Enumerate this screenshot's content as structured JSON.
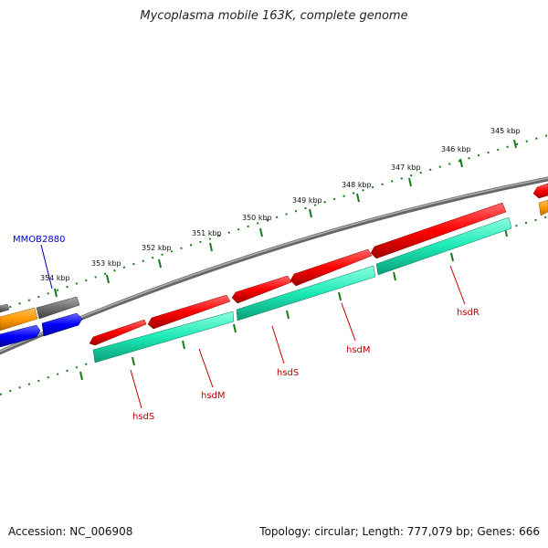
{
  "title": "Mycoplasma mobile 163K, complete genome",
  "accession": "Accession: NC_006908",
  "stats": "Topology: circular; Length: 777,079 bp; Genes: 666",
  "ticks": [
    {
      "label": "345 kbp"
    },
    {
      "label": "346 kbp"
    },
    {
      "label": "347 kbp"
    },
    {
      "label": "348 kbp"
    },
    {
      "label": "349 kbp"
    },
    {
      "label": "350 kbp"
    },
    {
      "label": "351 kbp"
    },
    {
      "label": "352 kbp"
    },
    {
      "label": "353 kbp"
    },
    {
      "label": "354 kbp"
    }
  ],
  "gene_labels": {
    "hsdS_1": "hsdS",
    "hsdM_1": "hsdM",
    "hsdS_2": "hsdS",
    "hsdM_2": "hsdM",
    "hsdR": "hsdR",
    "locus": "MMOB2880"
  },
  "colors": {
    "gene_red": "#ff0000",
    "cds_teal": "#1de9b6",
    "backbone": "#808080",
    "tick_green": "#1a7a1a",
    "orange": "#ff9900",
    "blue": "#0000ff",
    "gray": "#707070"
  }
}
